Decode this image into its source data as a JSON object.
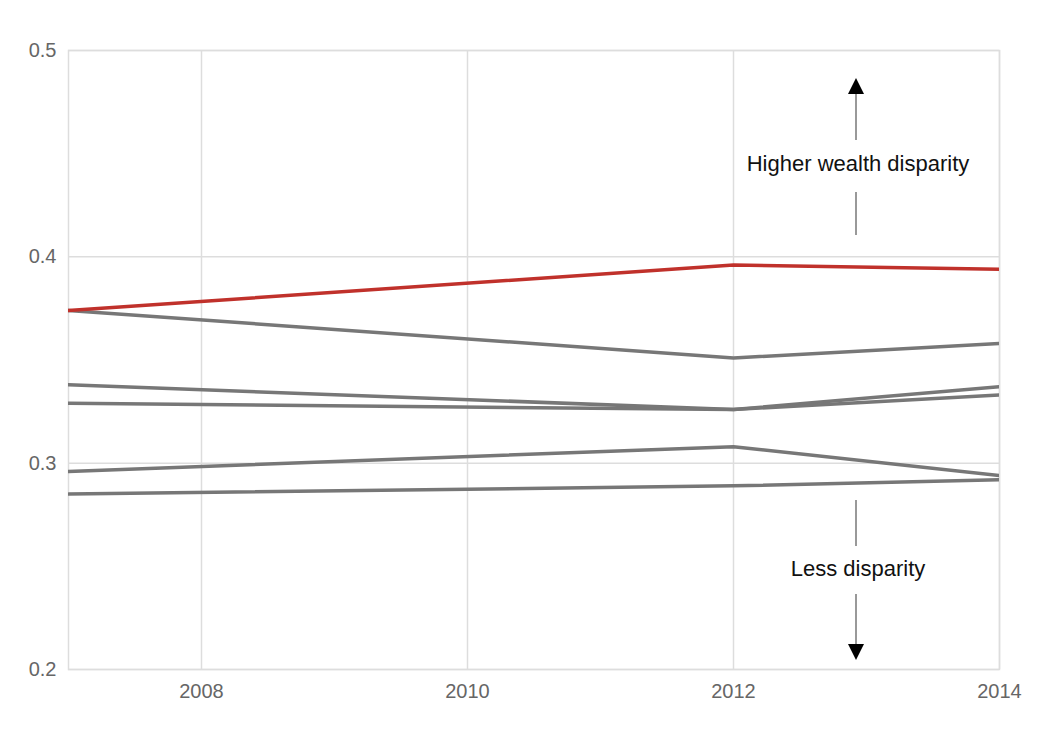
{
  "chart_data": {
    "type": "line",
    "x": [
      2007,
      2012,
      2014
    ],
    "series": [
      {
        "color": "#777777",
        "values": [
          0.374,
          0.351,
          0.358
        ]
      },
      {
        "color": "#777777",
        "values": [
          0.338,
          0.326,
          0.337
        ]
      },
      {
        "color": "#777777",
        "values": [
          0.329,
          0.326,
          0.333
        ]
      },
      {
        "color": "#777777",
        "values": [
          0.296,
          0.308,
          0.294
        ]
      },
      {
        "color": "#777777",
        "values": [
          0.285,
          0.289,
          0.292
        ]
      },
      {
        "color": "#c0312b",
        "values": [
          0.374,
          0.396,
          0.394
        ]
      }
    ],
    "xlim": [
      2007,
      2014
    ],
    "xticks": [
      2008,
      2010,
      2012,
      2014
    ],
    "ylim": [
      0.2,
      0.5
    ],
    "yticks": [
      0.2,
      0.3,
      0.4,
      0.5
    ],
    "grid": true,
    "annotations": [
      "Higher wealth disparity",
      "Less disparity"
    ]
  }
}
